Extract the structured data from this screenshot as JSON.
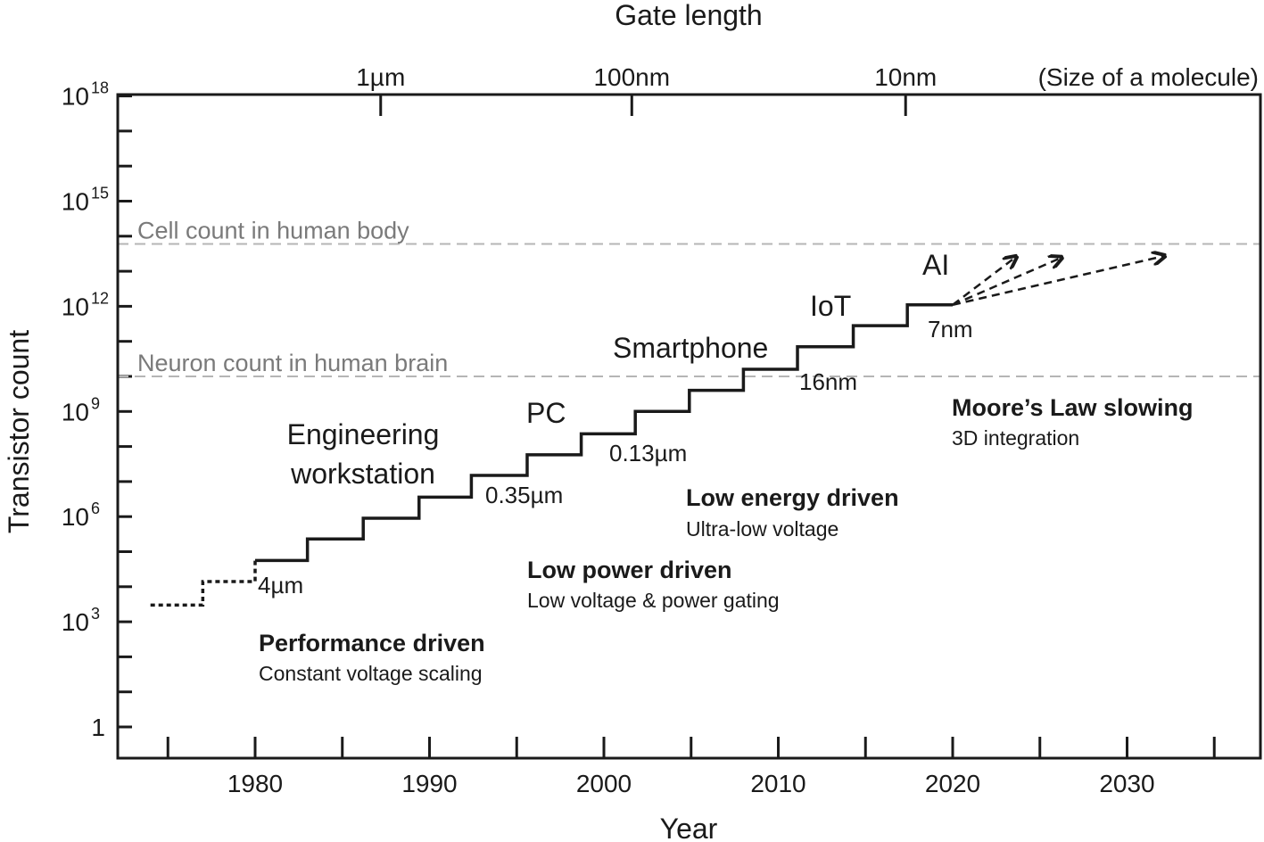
{
  "chart_data": {
    "type": "line",
    "title": "",
    "xlabel": "Year",
    "ylabel": "Transistor count",
    "top_axis_label": "Gate length",
    "xlim": [
      1972.1,
      2037.7
    ],
    "ylim": [
      0.125,
      1e+18
    ],
    "yscale": "log",
    "grid": false,
    "x_ticks": [
      1975,
      1980,
      1985,
      1990,
      1995,
      2000,
      2005,
      2010,
      2015,
      2020,
      2025,
      2030,
      2035
    ],
    "x_tick_labels": [
      "1980",
      "1990",
      "2000",
      "2010",
      "2020",
      "2030"
    ],
    "x_tick_label_years": [
      1980,
      1990,
      2000,
      2010,
      2020,
      2030
    ],
    "y_tick_exponents": [
      0,
      1,
      2,
      3,
      4,
      5,
      6,
      7,
      8,
      9,
      10,
      11,
      12,
      13,
      14,
      15,
      16,
      17,
      18
    ],
    "y_tick_labels": [
      {
        "base": "1",
        "exp": "",
        "value": 1
      },
      {
        "base": "10",
        "exp": "3",
        "value": 1000.0
      },
      {
        "base": "10",
        "exp": "6",
        "value": 1000000.0
      },
      {
        "base": "10",
        "exp": "9",
        "value": 1000000000.0
      },
      {
        "base": "10",
        "exp": "12",
        "value": 1000000000000.0
      },
      {
        "base": "10",
        "exp": "15",
        "value": 1000000000000000.0
      },
      {
        "base": "10",
        "exp": "18",
        "value": 1e+18
      }
    ],
    "top_ticks": [
      {
        "label": "1µm",
        "year": 1987.2
      },
      {
        "label": "100nm",
        "year": 2001.6
      },
      {
        "label": "10nm",
        "year": 2017.3
      }
    ],
    "top_right_label": "(Size of a molecule)",
    "reference_lines": [
      {
        "label": "Cell count in human body",
        "value": 60000000000000.0,
        "color": "#b5b5b5"
      },
      {
        "label": "Neuron count in human brain",
        "value": 10000000000.0,
        "color": "#b5b5b5"
      }
    ],
    "series": [
      {
        "style": "dotted",
        "step": true,
        "x": [
          1974,
          1977,
          1980
        ],
        "y": [
          3000,
          14000,
          56000
        ],
        "x_end": 1980
      },
      {
        "style": "solid",
        "step": true,
        "x": [
          1980,
          1983,
          1986.2,
          1989.4,
          1992.4,
          1995.6,
          1998.7,
          2001.8,
          2004.9,
          2008.0,
          2011.1,
          2014.3,
          2017.4
        ],
        "y": [
          56000,
          230000,
          900000,
          3600000,
          15000000,
          58000000,
          230000000,
          1000000000,
          4000000000,
          16000000000,
          70000000000,
          280000000000,
          1100000000000
        ],
        "x_end": 2020
      }
    ],
    "projections": [
      {
        "from": [
          2020,
          1100000000000.0
        ],
        "to": [
          2023.6,
          25000000000000.0
        ]
      },
      {
        "from": [
          2020,
          1100000000000.0
        ],
        "to": [
          2026.2,
          24000000000000.0
        ]
      },
      {
        "from": [
          2020,
          1100000000000.0
        ],
        "to": [
          2032.1,
          27000000000000.0
        ]
      }
    ],
    "node_labels": [
      "4µm",
      "0.35µm",
      "0.13µm",
      "16nm",
      "7nm"
    ],
    "era_labels": [
      "Engineering",
      "workstation",
      "PC",
      "Smartphone",
      "IoT",
      "AI"
    ],
    "annotations": [
      {
        "title": "Performance driven",
        "subtitle": "Constant voltage scaling"
      },
      {
        "title": "Low power driven",
        "subtitle": "Low voltage & power gating"
      },
      {
        "title": "Low energy driven",
        "subtitle": "Ultra-low voltage"
      },
      {
        "title": "Moore’s Law slowing",
        "subtitle": "3D integration"
      }
    ]
  }
}
